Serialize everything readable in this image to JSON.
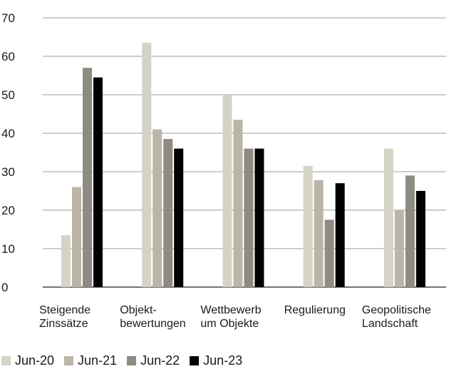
{
  "chart_data": {
    "type": "bar",
    "categories": [
      [
        "Steigende",
        "Zinssätze"
      ],
      [
        "Objekt-",
        "bewertungen"
      ],
      [
        "Wettbewerb",
        "um Objekte"
      ],
      [
        "Regulierung"
      ],
      [
        "Geopolitische",
        "Landschaft"
      ]
    ],
    "series": [
      {
        "name": "Jun-20",
        "color": "#d4d3c5",
        "values": [
          13.5,
          63.5,
          50,
          31.5,
          36
        ]
      },
      {
        "name": "Jun-21",
        "color": "#bcb4a6",
        "values": [
          26,
          41,
          43.5,
          27.8,
          20
        ]
      },
      {
        "name": "Jun-22",
        "color": "#8d8b82",
        "values": [
          57,
          38.5,
          36,
          17.5,
          29
        ]
      },
      {
        "name": "Jun-23",
        "color": "#000000",
        "values": [
          54.5,
          36,
          36,
          27,
          25
        ]
      }
    ],
    "ylim": [
      0,
      70
    ],
    "yticks": [
      0,
      10,
      20,
      30,
      40,
      50,
      60,
      70
    ],
    "grid": true,
    "legend_position": "bottom-left"
  }
}
